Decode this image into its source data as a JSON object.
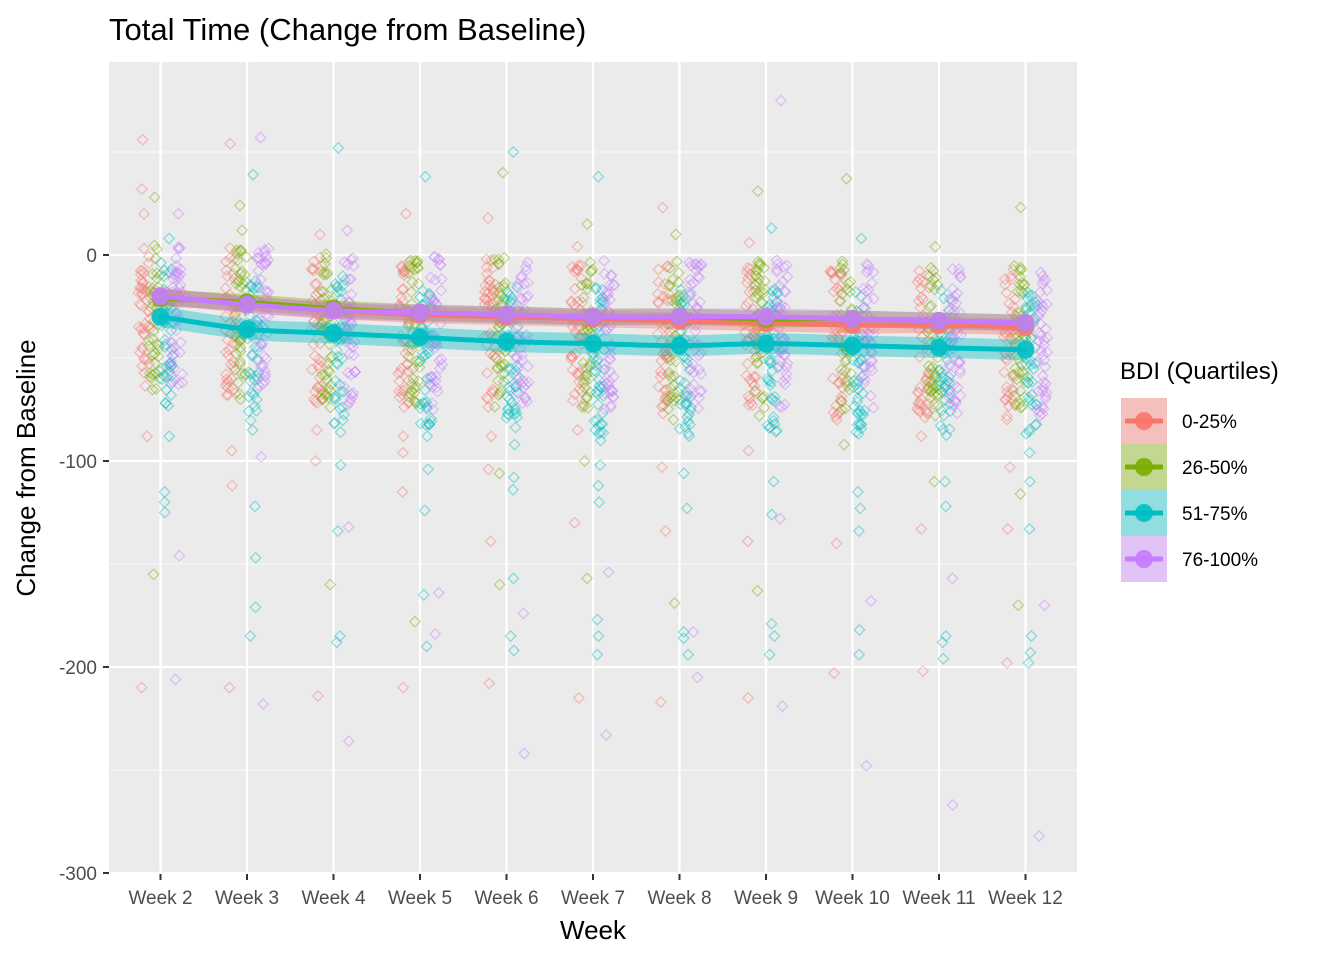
{
  "chart_data": {
    "type": "line",
    "title": "Total Time (Change from Baseline)",
    "xlabel": "Week",
    "ylabel": "Change from Baseline",
    "categories": [
      "Week 2",
      "Week 3",
      "Week 4",
      "Week 5",
      "Week 6",
      "Week 7",
      "Week 8",
      "Week 9",
      "Week 10",
      "Week 11",
      "Week 12"
    ],
    "ylim": [
      -300,
      85
    ],
    "yticks": [
      0,
      -100,
      -200,
      -300
    ],
    "grid": true,
    "legend": {
      "title": "BDI (Quartiles)",
      "position": "right"
    },
    "series": [
      {
        "name": "0-25%",
        "color": "#F8766D",
        "values": [
          -20,
          -24,
          -27,
          -29,
          -30,
          -31,
          -32,
          -33,
          -34,
          -34,
          -35
        ],
        "ci_halfwidth": 4
      },
      {
        "name": "26-50%",
        "color": "#7CAE00",
        "values": [
          -21,
          -23,
          -26,
          -28,
          -29,
          -30,
          -30,
          -31,
          -31,
          -32,
          -33
        ],
        "ci_halfwidth": 4
      },
      {
        "name": "51-75%",
        "color": "#00BFC4",
        "values": [
          -30,
          -36,
          -38,
          -40,
          -42,
          -43,
          -44,
          -43,
          -44,
          -45,
          -46
        ],
        "ci_halfwidth": 5
      },
      {
        "name": "76-100%",
        "color": "#C77CFF",
        "values": [
          -20,
          -24,
          -27,
          -28,
          -29,
          -30,
          -30,
          -30,
          -31,
          -32,
          -33
        ],
        "ci_halfwidth": 4
      }
    ],
    "outliers": [
      {
        "g": 0,
        "w": 0,
        "y": 56
      },
      {
        "g": 0,
        "w": 0,
        "y": 32
      },
      {
        "g": 0,
        "w": 0,
        "y": 20
      },
      {
        "g": 0,
        "w": 0,
        "y": -50
      },
      {
        "g": 0,
        "w": 0,
        "y": -88
      },
      {
        "g": 0,
        "w": 0,
        "y": -210
      },
      {
        "g": 1,
        "w": 0,
        "y": 28
      },
      {
        "g": 1,
        "w": 0,
        "y": -58
      },
      {
        "g": 1,
        "w": 0,
        "y": -155
      },
      {
        "g": 2,
        "w": 0,
        "y": 8
      },
      {
        "g": 2,
        "w": 0,
        "y": -72
      },
      {
        "g": 2,
        "w": 0,
        "y": -88
      },
      {
        "g": 2,
        "w": 0,
        "y": -115
      },
      {
        "g": 2,
        "w": 0,
        "y": -120
      },
      {
        "g": 2,
        "w": 0,
        "y": -125
      },
      {
        "g": 3,
        "w": 0,
        "y": 20
      },
      {
        "g": 3,
        "w": 0,
        "y": -55
      },
      {
        "g": 3,
        "w": 0,
        "y": -146
      },
      {
        "g": 3,
        "w": 0,
        "y": -206
      },
      {
        "g": 0,
        "w": 1,
        "y": 54
      },
      {
        "g": 0,
        "w": 1,
        "y": -60
      },
      {
        "g": 0,
        "w": 1,
        "y": -95
      },
      {
        "g": 0,
        "w": 1,
        "y": -112
      },
      {
        "g": 0,
        "w": 1,
        "y": -210
      },
      {
        "g": 1,
        "w": 1,
        "y": 24
      },
      {
        "g": 1,
        "w": 1,
        "y": 12
      },
      {
        "g": 1,
        "w": 1,
        "y": -62
      },
      {
        "g": 1,
        "w": 1,
        "y": -70
      },
      {
        "g": 2,
        "w": 1,
        "y": 39
      },
      {
        "g": 2,
        "w": 1,
        "y": -85
      },
      {
        "g": 2,
        "w": 1,
        "y": -122
      },
      {
        "g": 2,
        "w": 1,
        "y": -147
      },
      {
        "g": 2,
        "w": 1,
        "y": -171
      },
      {
        "g": 2,
        "w": 1,
        "y": -185
      },
      {
        "g": 3,
        "w": 1,
        "y": 57
      },
      {
        "g": 3,
        "w": 1,
        "y": -58
      },
      {
        "g": 3,
        "w": 1,
        "y": -98
      },
      {
        "g": 3,
        "w": 1,
        "y": -218
      },
      {
        "g": 0,
        "w": 2,
        "y": 10
      },
      {
        "g": 0,
        "w": 2,
        "y": -55
      },
      {
        "g": 0,
        "w": 2,
        "y": -85
      },
      {
        "g": 0,
        "w": 2,
        "y": -100
      },
      {
        "g": 0,
        "w": 2,
        "y": -214
      },
      {
        "g": 1,
        "w": 2,
        "y": -68
      },
      {
        "g": 1,
        "w": 2,
        "y": -74
      },
      {
        "g": 1,
        "w": 2,
        "y": -160
      },
      {
        "g": 2,
        "w": 2,
        "y": 52
      },
      {
        "g": 2,
        "w": 2,
        "y": -86
      },
      {
        "g": 2,
        "w": 2,
        "y": -102
      },
      {
        "g": 2,
        "w": 2,
        "y": -134
      },
      {
        "g": 2,
        "w": 2,
        "y": -185
      },
      {
        "g": 2,
        "w": 2,
        "y": -188
      },
      {
        "g": 3,
        "w": 2,
        "y": 12
      },
      {
        "g": 3,
        "w": 2,
        "y": -73
      },
      {
        "g": 3,
        "w": 2,
        "y": -132
      },
      {
        "g": 3,
        "w": 2,
        "y": -236
      },
      {
        "g": 0,
        "w": 3,
        "y": 20
      },
      {
        "g": 0,
        "w": 3,
        "y": -88
      },
      {
        "g": 0,
        "w": 3,
        "y": -96
      },
      {
        "g": 0,
        "w": 3,
        "y": -115
      },
      {
        "g": 0,
        "w": 3,
        "y": -210
      },
      {
        "g": 1,
        "w": 3,
        "y": -65
      },
      {
        "g": 1,
        "w": 3,
        "y": -72
      },
      {
        "g": 1,
        "w": 3,
        "y": -178
      },
      {
        "g": 2,
        "w": 3,
        "y": 38
      },
      {
        "g": 2,
        "w": 3,
        "y": -60
      },
      {
        "g": 2,
        "w": 3,
        "y": -88
      },
      {
        "g": 2,
        "w": 3,
        "y": -104
      },
      {
        "g": 2,
        "w": 3,
        "y": -124
      },
      {
        "g": 2,
        "w": 3,
        "y": -165
      },
      {
        "g": 2,
        "w": 3,
        "y": -190
      },
      {
        "g": 3,
        "w": 3,
        "y": -75
      },
      {
        "g": 3,
        "w": 3,
        "y": -164
      },
      {
        "g": 3,
        "w": 3,
        "y": -184
      },
      {
        "g": 0,
        "w": 4,
        "y": 18
      },
      {
        "g": 0,
        "w": 4,
        "y": -88
      },
      {
        "g": 0,
        "w": 4,
        "y": -104
      },
      {
        "g": 0,
        "w": 4,
        "y": -139
      },
      {
        "g": 0,
        "w": 4,
        "y": -208
      },
      {
        "g": 1,
        "w": 4,
        "y": 40
      },
      {
        "g": 1,
        "w": 4,
        "y": -68
      },
      {
        "g": 1,
        "w": 4,
        "y": -106
      },
      {
        "g": 1,
        "w": 4,
        "y": -160
      },
      {
        "g": 2,
        "w": 4,
        "y": 50
      },
      {
        "g": 2,
        "w": 4,
        "y": -70
      },
      {
        "g": 2,
        "w": 4,
        "y": -92
      },
      {
        "g": 2,
        "w": 4,
        "y": -108
      },
      {
        "g": 2,
        "w": 4,
        "y": -114
      },
      {
        "g": 2,
        "w": 4,
        "y": -157
      },
      {
        "g": 2,
        "w": 4,
        "y": -185
      },
      {
        "g": 2,
        "w": 4,
        "y": -192
      },
      {
        "g": 3,
        "w": 4,
        "y": -174
      },
      {
        "g": 3,
        "w": 4,
        "y": -242
      },
      {
        "g": 0,
        "w": 5,
        "y": 4
      },
      {
        "g": 0,
        "w": 5,
        "y": -85
      },
      {
        "g": 0,
        "w": 5,
        "y": -130
      },
      {
        "g": 0,
        "w": 5,
        "y": -215
      },
      {
        "g": 1,
        "w": 5,
        "y": 15
      },
      {
        "g": 1,
        "w": 5,
        "y": -100
      },
      {
        "g": 1,
        "w": 5,
        "y": -157
      },
      {
        "g": 2,
        "w": 5,
        "y": 38
      },
      {
        "g": 2,
        "w": 5,
        "y": -64
      },
      {
        "g": 2,
        "w": 5,
        "y": -90
      },
      {
        "g": 2,
        "w": 5,
        "y": -102
      },
      {
        "g": 2,
        "w": 5,
        "y": -112
      },
      {
        "g": 2,
        "w": 5,
        "y": -120
      },
      {
        "g": 2,
        "w": 5,
        "y": -177
      },
      {
        "g": 2,
        "w": 5,
        "y": -185
      },
      {
        "g": 2,
        "w": 5,
        "y": -194
      },
      {
        "g": 3,
        "w": 5,
        "y": -154
      },
      {
        "g": 3,
        "w": 5,
        "y": -233
      },
      {
        "g": 0,
        "w": 6,
        "y": 23
      },
      {
        "g": 0,
        "w": 6,
        "y": -103
      },
      {
        "g": 0,
        "w": 6,
        "y": -134
      },
      {
        "g": 0,
        "w": 6,
        "y": -217
      },
      {
        "g": 1,
        "w": 6,
        "y": 10
      },
      {
        "g": 1,
        "w": 6,
        "y": -80
      },
      {
        "g": 1,
        "w": 6,
        "y": -169
      },
      {
        "g": 2,
        "w": 6,
        "y": -72
      },
      {
        "g": 2,
        "w": 6,
        "y": -106
      },
      {
        "g": 2,
        "w": 6,
        "y": -123
      },
      {
        "g": 2,
        "w": 6,
        "y": -183
      },
      {
        "g": 2,
        "w": 6,
        "y": -186
      },
      {
        "g": 2,
        "w": 6,
        "y": -194
      },
      {
        "g": 3,
        "w": 6,
        "y": -183
      },
      {
        "g": 3,
        "w": 6,
        "y": -205
      },
      {
        "g": 0,
        "w": 7,
        "y": 6
      },
      {
        "g": 0,
        "w": 7,
        "y": -95
      },
      {
        "g": 0,
        "w": 7,
        "y": -139
      },
      {
        "g": 0,
        "w": 7,
        "y": -215
      },
      {
        "g": 1,
        "w": 7,
        "y": 31
      },
      {
        "g": 1,
        "w": 7,
        "y": -78
      },
      {
        "g": 1,
        "w": 7,
        "y": -163
      },
      {
        "g": 2,
        "w": 7,
        "y": 13
      },
      {
        "g": 2,
        "w": 7,
        "y": -84
      },
      {
        "g": 2,
        "w": 7,
        "y": -110
      },
      {
        "g": 2,
        "w": 7,
        "y": -126
      },
      {
        "g": 2,
        "w": 7,
        "y": -179
      },
      {
        "g": 2,
        "w": 7,
        "y": -185
      },
      {
        "g": 2,
        "w": 7,
        "y": -194
      },
      {
        "g": 3,
        "w": 7,
        "y": 75
      },
      {
        "g": 3,
        "w": 7,
        "y": -128
      },
      {
        "g": 3,
        "w": 7,
        "y": -219
      },
      {
        "g": 0,
        "w": 8,
        "y": -80
      },
      {
        "g": 0,
        "w": 8,
        "y": -140
      },
      {
        "g": 0,
        "w": 8,
        "y": -203
      },
      {
        "g": 1,
        "w": 8,
        "y": 37
      },
      {
        "g": 1,
        "w": 8,
        "y": -92
      },
      {
        "g": 2,
        "w": 8,
        "y": 8
      },
      {
        "g": 2,
        "w": 8,
        "y": -86
      },
      {
        "g": 2,
        "w": 8,
        "y": -115
      },
      {
        "g": 2,
        "w": 8,
        "y": -123
      },
      {
        "g": 2,
        "w": 8,
        "y": -134
      },
      {
        "g": 2,
        "w": 8,
        "y": -182
      },
      {
        "g": 2,
        "w": 8,
        "y": -194
      },
      {
        "g": 3,
        "w": 8,
        "y": -168
      },
      {
        "g": 3,
        "w": 8,
        "y": -248
      },
      {
        "g": 0,
        "w": 9,
        "y": -88
      },
      {
        "g": 0,
        "w": 9,
        "y": -133
      },
      {
        "g": 0,
        "w": 9,
        "y": -202
      },
      {
        "g": 1,
        "w": 9,
        "y": 4
      },
      {
        "g": 1,
        "w": 9,
        "y": -78
      },
      {
        "g": 1,
        "w": 9,
        "y": -110
      },
      {
        "g": 2,
        "w": 9,
        "y": -110
      },
      {
        "g": 2,
        "w": 9,
        "y": -122
      },
      {
        "g": 2,
        "w": 9,
        "y": -185
      },
      {
        "g": 2,
        "w": 9,
        "y": -188
      },
      {
        "g": 2,
        "w": 9,
        "y": -196
      },
      {
        "g": 3,
        "w": 9,
        "y": -157
      },
      {
        "g": 3,
        "w": 9,
        "y": -267
      },
      {
        "g": 0,
        "w": 10,
        "y": -103
      },
      {
        "g": 0,
        "w": 10,
        "y": -133
      },
      {
        "g": 0,
        "w": 10,
        "y": -198
      },
      {
        "g": 1,
        "w": 10,
        "y": 23
      },
      {
        "g": 1,
        "w": 10,
        "y": -116
      },
      {
        "g": 1,
        "w": 10,
        "y": -170
      },
      {
        "g": 2,
        "w": 10,
        "y": -96
      },
      {
        "g": 2,
        "w": 10,
        "y": -110
      },
      {
        "g": 2,
        "w": 10,
        "y": -133
      },
      {
        "g": 2,
        "w": 10,
        "y": -185
      },
      {
        "g": 2,
        "w": 10,
        "y": -193
      },
      {
        "g": 2,
        "w": 10,
        "y": -198
      },
      {
        "g": 3,
        "w": 10,
        "y": -78
      },
      {
        "g": 3,
        "w": 10,
        "y": -170
      },
      {
        "g": 3,
        "w": 10,
        "y": -282
      }
    ]
  }
}
